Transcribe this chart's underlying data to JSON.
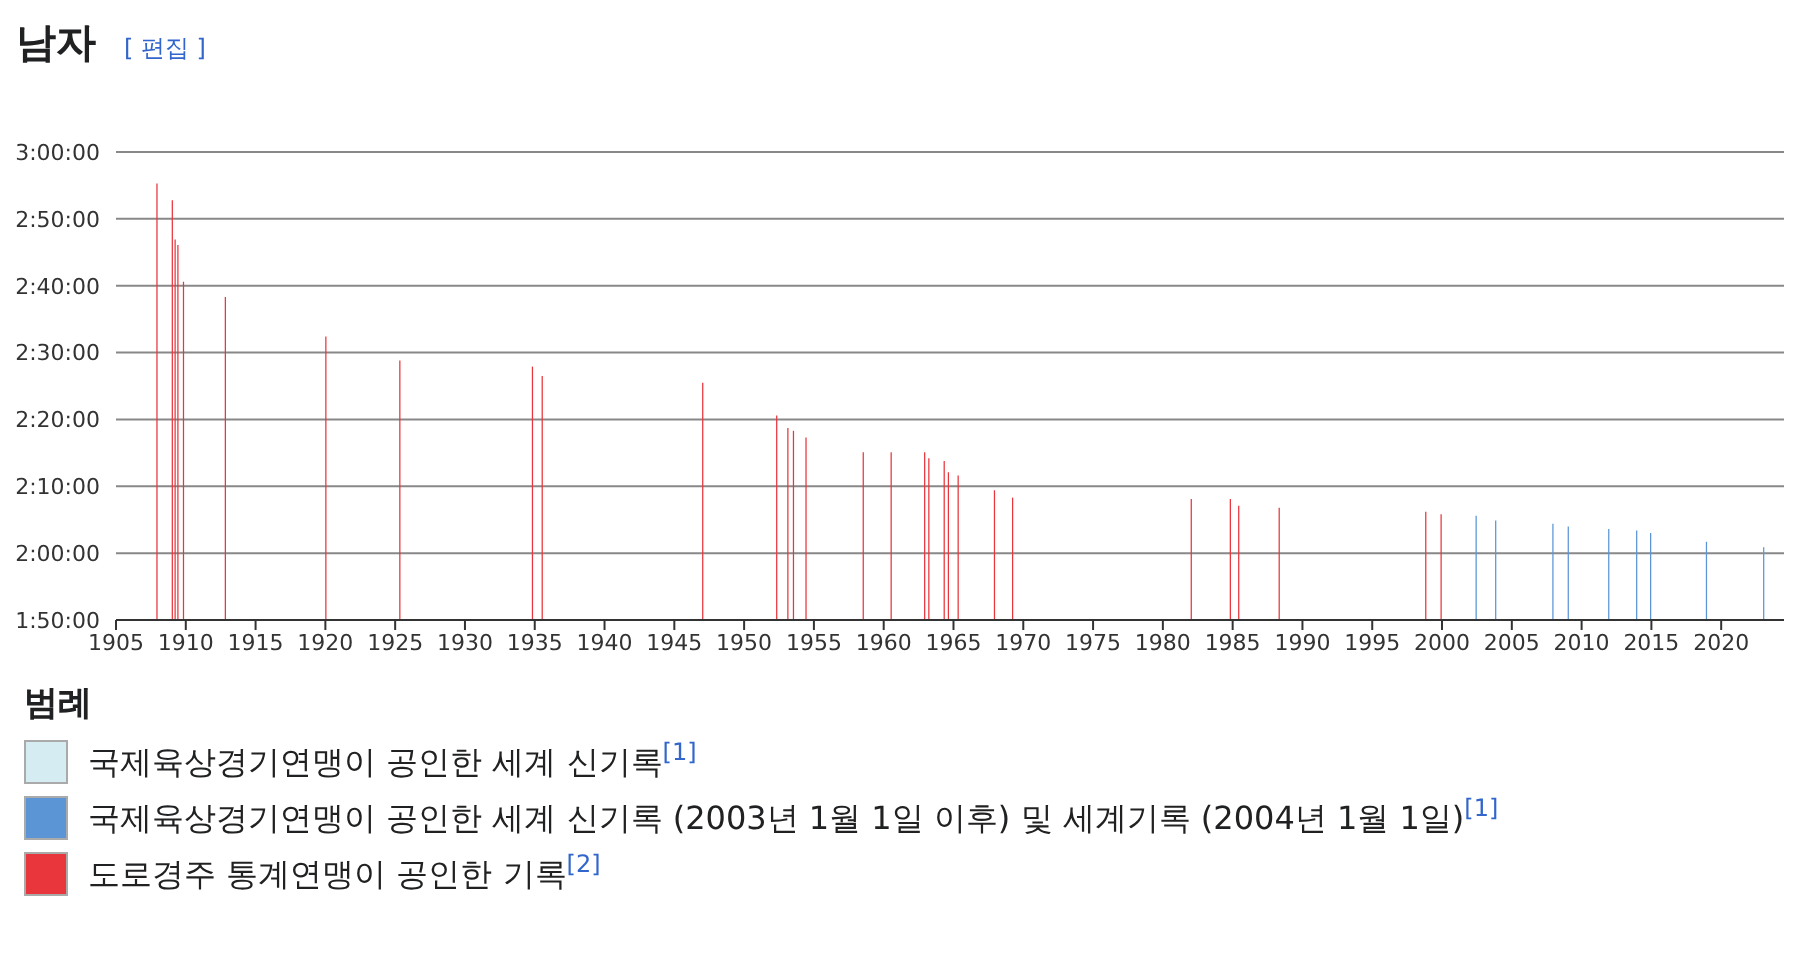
{
  "chart_data": {
    "type": "bar",
    "title": "남자",
    "subtitle": "[ 편집 ]",
    "legend_title": "범례",
    "legend": "bottom",
    "grid": "y",
    "xlim": [
      1905,
      2024.5
    ],
    "xticks": [
      1905,
      1910,
      1915,
      1920,
      1925,
      1930,
      1935,
      1940,
      1945,
      1950,
      1955,
      1960,
      1965,
      1970,
      1975,
      1980,
      1985,
      1990,
      1995,
      2000,
      2005,
      2010,
      2015,
      2020
    ],
    "ylim": [
      110,
      180
    ],
    "yticks": [
      {
        "value": 110,
        "label": "1:50:00"
      },
      {
        "value": 120,
        "label": "2:00:00"
      },
      {
        "value": 130,
        "label": "2:10:00"
      },
      {
        "value": 140,
        "label": "2:20:00"
      },
      {
        "value": 150,
        "label": "2:30:00"
      },
      {
        "value": 160,
        "label": "2:40:00"
      },
      {
        "value": 170,
        "label": "2:50:00"
      },
      {
        "value": 180,
        "label": "3:00:00"
      }
    ],
    "series": [
      {
        "name": "국제육상경기연맹이 공인한 세계 신기록$^{[1]}$",
        "color": "#d6ecf3"
      },
      {
        "name": "국제육상경기연맹이 공인한 세계 신기록 (2003년 1월 1일 이후) 및 세계기록 (2004년 1월 1일)$^{[1]}$",
        "color": "#5b95d6",
        "x": [
          2002.5,
          2003.9,
          2008.0,
          2009.1,
          2012.0,
          2014.0,
          2015.0,
          2019.0,
          2023.1
        ],
        "values": [
          125.6,
          124.9,
          124.4,
          124.0,
          123.6,
          123.4,
          123.0,
          121.7,
          120.9
        ]
      },
      {
        "name": "도로경주 통계연맹이 공인한 기록$^{[2]}$",
        "color": "#e8363c",
        "x": [
          1907.9,
          1909.0,
          1909.2,
          1909.4,
          1909.8,
          1912.8,
          1920.0,
          1925.3,
          1934.8,
          1935.5,
          1947.0,
          1952.3,
          1953.1,
          1953.5,
          1954.4,
          1958.5,
          1960.5,
          1962.9,
          1963.2,
          1964.3,
          1964.6,
          1965.3,
          1967.9,
          1969.2,
          1982.0,
          1984.8,
          1985.4,
          1988.3,
          1998.8,
          1999.9
        ],
        "values": [
          175.3,
          172.8,
          166.9,
          166.1,
          160.6,
          158.3,
          152.4,
          148.8,
          147.9,
          146.5,
          145.5,
          140.6,
          138.7,
          138.3,
          137.3,
          135.1,
          135.1,
          135.1,
          134.2,
          133.8,
          132.1,
          131.6,
          129.4,
          128.3,
          128.1,
          128.1,
          127.1,
          126.8,
          126.2,
          125.8
        ]
      }
    ]
  }
}
